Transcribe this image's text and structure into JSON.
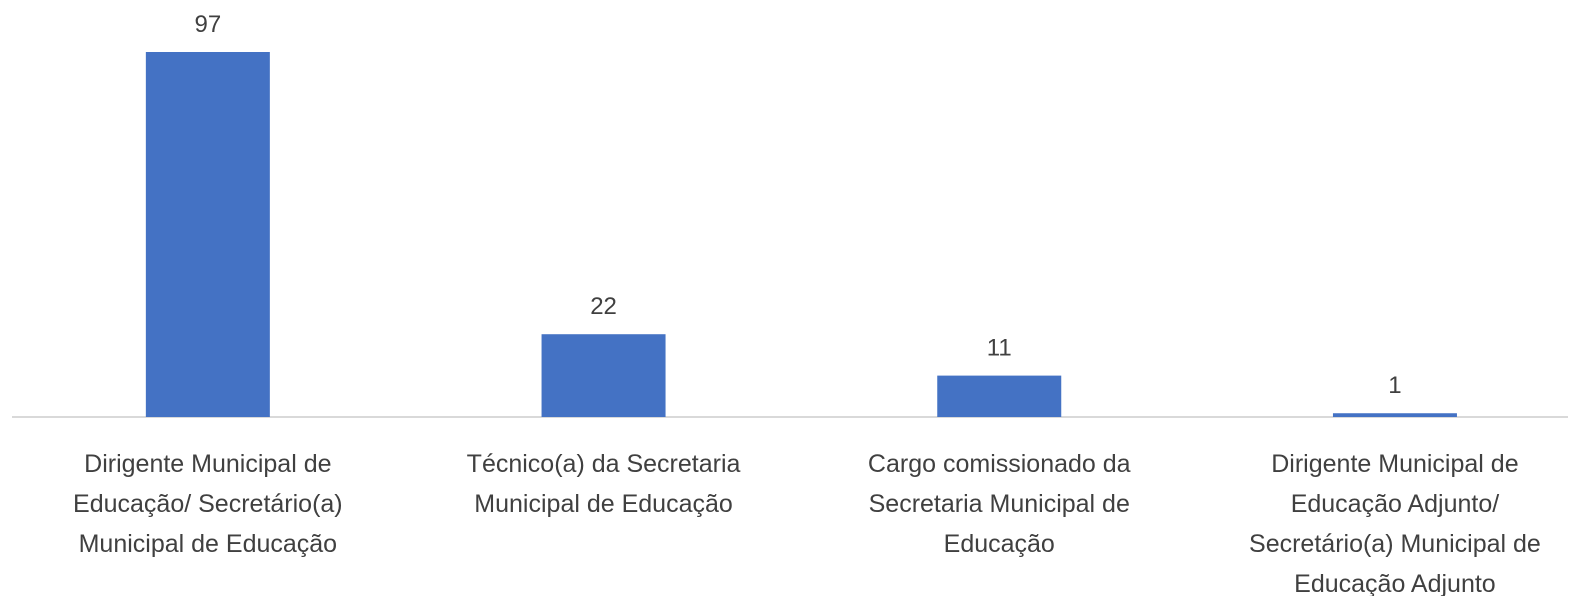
{
  "chart_data": {
    "type": "bar",
    "categories": [
      "Dirigente Municipal de Educação/ Secretário(a) Municipal de Educação",
      "Técnico(a) da Secretaria Municipal de Educação",
      "Cargo comissionado da Secretaria Municipal de Educação",
      "Dirigente Municipal de Educação Adjunto/ Secretário(a) Municipal de Educação Adjunto"
    ],
    "values": [
      97,
      22,
      11,
      1
    ],
    "color": "#4472c4"
  }
}
